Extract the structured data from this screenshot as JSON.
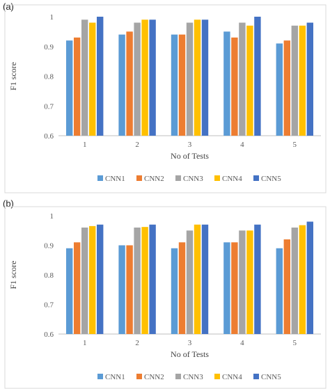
{
  "chart_data": [
    {
      "panel_label": "(a)",
      "type": "bar",
      "categories": [
        "1",
        "2",
        "3",
        "4",
        "5"
      ],
      "series": [
        {
          "name": "CNN1",
          "values": [
            0.92,
            0.94,
            0.94,
            0.95,
            0.91
          ]
        },
        {
          "name": "CNN2",
          "values": [
            0.93,
            0.95,
            0.94,
            0.93,
            0.92
          ]
        },
        {
          "name": "CNN3",
          "values": [
            0.99,
            0.98,
            0.98,
            0.98,
            0.97
          ]
        },
        {
          "name": "CNN4",
          "values": [
            0.98,
            0.99,
            0.99,
            0.97,
            0.97
          ]
        },
        {
          "name": "CNN5",
          "values": [
            1.0,
            0.99,
            0.99,
            1.0,
            0.98
          ]
        }
      ],
      "xlabel": "No of Tests",
      "ylabel": "F1 score",
      "ylim": [
        0.6,
        1.0
      ],
      "yticks": [
        "0.6",
        "0.7",
        "0.8",
        "0.9",
        "1"
      ],
      "grid": false,
      "legend_position": "bottom"
    },
    {
      "panel_label": "(b)",
      "type": "bar",
      "categories": [
        "1",
        "2",
        "3",
        "4",
        "5"
      ],
      "series": [
        {
          "name": "CNN1",
          "values": [
            0.89,
            0.9,
            0.89,
            0.91,
            0.89
          ]
        },
        {
          "name": "CNN2",
          "values": [
            0.91,
            0.9,
            0.91,
            0.91,
            0.92
          ]
        },
        {
          "name": "CNN3",
          "values": [
            0.96,
            0.96,
            0.95,
            0.95,
            0.96
          ]
        },
        {
          "name": "CNN4",
          "values": [
            0.965,
            0.962,
            0.97,
            0.95,
            0.968
          ]
        },
        {
          "name": "CNN5",
          "values": [
            0.97,
            0.97,
            0.97,
            0.97,
            0.98
          ]
        }
      ],
      "xlabel": "No of Tests",
      "ylabel": "F1 score",
      "ylim": [
        0.6,
        1.0
      ],
      "yticks": [
        "0.6",
        "0.7",
        "0.8",
        "0.9",
        "1"
      ],
      "grid": false,
      "legend_position": "bottom"
    }
  ],
  "colors": {
    "CNN1": "#5B9BD5",
    "CNN2": "#ED7D31",
    "CNN3": "#A5A5A5",
    "CNN4": "#FFC000",
    "CNN5": "#4472C4",
    "frame": "#d9d9d9",
    "axis": "#bfbfbf"
  }
}
